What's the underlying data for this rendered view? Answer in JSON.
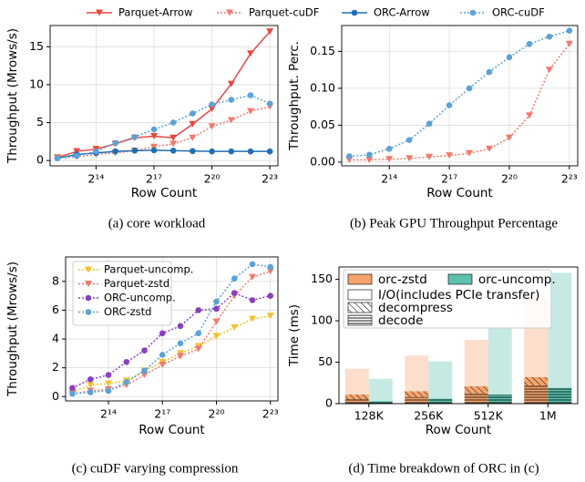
{
  "chart_data": [
    {
      "type": "line",
      "caption": "(a) core workload",
      "xlabel": "Row Count",
      "ylabel": "Throughput (Mrows/s)",
      "xscale": "log",
      "xlim": [
        3150,
        11200000
      ],
      "xticks": [
        {
          "value": 16384,
          "label": "2¹⁴"
        },
        {
          "value": 131072,
          "label": "2¹⁷"
        },
        {
          "value": 1048576,
          "label": "2²⁰"
        },
        {
          "value": 8388608,
          "label": "2²³"
        }
      ],
      "ylim": [
        -0.7,
        17.8
      ],
      "yticks": [
        0,
        5,
        10,
        15
      ],
      "grid": true,
      "legend": "top-outside",
      "x": [
        4096,
        8192,
        16384,
        32768,
        65536,
        131072,
        262144,
        524288,
        1048576,
        2097152,
        4194304,
        8388608
      ],
      "series": [
        {
          "name": "Parquet-Arrow",
          "color": "#e8473f",
          "marker": "v",
          "dash": false,
          "values": [
            0.4,
            1.2,
            1.5,
            2.2,
            3.0,
            3.2,
            3.0,
            4.8,
            6.8,
            10.1,
            14.1,
            17.0
          ]
        },
        {
          "name": "Parquet-cuDF",
          "color": "#f07a6e",
          "marker": "v",
          "dash": true,
          "values": [
            0.3,
            0.5,
            0.8,
            1.0,
            1.3,
            1.8,
            2.2,
            3.0,
            4.5,
            5.3,
            6.5,
            7.1
          ]
        },
        {
          "name": "ORC-Arrow",
          "color": "#1f6fb4",
          "marker": "o",
          "dash": false,
          "values": [
            0.3,
            0.8,
            1.0,
            1.2,
            1.3,
            1.35,
            1.3,
            1.25,
            1.2,
            1.2,
            1.2,
            1.2
          ]
        },
        {
          "name": "ORC-cuDF",
          "color": "#5ba3d6",
          "marker": "o",
          "dash": true,
          "values": [
            0.3,
            0.6,
            1.2,
            2.3,
            3.1,
            4.1,
            5.0,
            6.2,
            7.4,
            8.0,
            8.6,
            7.5
          ]
        }
      ]
    },
    {
      "type": "line",
      "caption": "(b) Peak GPU Throughput Percentage",
      "xlabel": "Row Count",
      "ylabel": "Throughput. Perc.",
      "xscale": "log",
      "xlim": [
        3150,
        11200000
      ],
      "xticks": [
        {
          "value": 16384,
          "label": "2¹⁴"
        },
        {
          "value": 131072,
          "label": "2¹⁷"
        },
        {
          "value": 1048576,
          "label": "2²⁰"
        },
        {
          "value": 8388608,
          "label": "2²³"
        }
      ],
      "ylim": [
        -0.005,
        0.185
      ],
      "yticks": [
        {
          "value": 0,
          "label": "0.00"
        },
        {
          "value": 0.05,
          "label": "0.05"
        },
        {
          "value": 0.1,
          "label": "0.10"
        },
        {
          "value": 0.15,
          "label": "0.15"
        }
      ],
      "grid": true,
      "x": [
        4096,
        8192,
        16384,
        32768,
        65536,
        131072,
        262144,
        524288,
        1048576,
        2097152,
        4194304,
        8388608
      ],
      "series": [
        {
          "color": "#f07a6e",
          "marker": "v",
          "dash": true,
          "values": [
            0.003,
            0.003,
            0.004,
            0.005,
            0.007,
            0.009,
            0.012,
            0.018,
            0.033,
            0.063,
            0.125,
            0.16
          ]
        },
        {
          "color": "#5ba3d6",
          "marker": "o",
          "dash": true,
          "values": [
            0.008,
            0.01,
            0.018,
            0.03,
            0.052,
            0.077,
            0.1,
            0.122,
            0.142,
            0.16,
            0.17,
            0.178
          ]
        }
      ]
    },
    {
      "type": "line",
      "caption": "(c) cuDF varying compression",
      "xlabel": "Row Count",
      "ylabel": "Throughput (Mrows/s)",
      "xscale": "log",
      "xlim": [
        3150,
        11200000
      ],
      "xticks": [
        {
          "value": 16384,
          "label": "2¹⁴"
        },
        {
          "value": 131072,
          "label": "2¹⁷"
        },
        {
          "value": 1048576,
          "label": "2²⁰"
        },
        {
          "value": 8388608,
          "label": "2²³"
        }
      ],
      "ylim": [
        -0.3,
        9.7
      ],
      "yticks": [
        0,
        2,
        4,
        6,
        8
      ],
      "grid": true,
      "legend": "upper left",
      "x": [
        4096,
        8192,
        16384,
        32768,
        65536,
        131072,
        262144,
        524288,
        1048576,
        2097152,
        4194304,
        8388608
      ],
      "series": [
        {
          "name": "Parquet-uncomp.",
          "color": "#f2c12e",
          "marker": "v",
          "dash": true,
          "values": [
            0.3,
            0.8,
            0.9,
            1.1,
            1.8,
            2.4,
            3.0,
            3.5,
            4.2,
            4.8,
            5.4,
            5.6
          ]
        },
        {
          "name": "Parquet-zstd",
          "color": "#f07a6e",
          "marker": "v",
          "dash": true,
          "values": [
            0.2,
            0.4,
            0.5,
            0.8,
            1.5,
            2.2,
            2.8,
            3.3,
            5.2,
            7.0,
            8.3,
            8.7
          ]
        },
        {
          "name": "ORC-uncomp.",
          "color": "#8a3fbf",
          "marker": "o",
          "dash": true,
          "values": [
            0.6,
            1.2,
            1.5,
            2.4,
            3.2,
            4.4,
            4.9,
            6.0,
            6.1,
            7.2,
            6.7,
            7.0
          ]
        },
        {
          "name": "ORC-zstd",
          "color": "#5ba3d6",
          "marker": "o",
          "dash": true,
          "values": [
            0.2,
            0.3,
            0.4,
            1.0,
            1.8,
            2.9,
            3.7,
            4.4,
            6.6,
            8.2,
            9.2,
            9.0
          ]
        }
      ]
    },
    {
      "type": "stacked_bar",
      "caption": "(d) Time breakdown of ORC in (c)",
      "xlabel": "Row Count",
      "ylabel": "Time (ms)",
      "categories": [
        "128K",
        "256K",
        "512K",
        "1M"
      ],
      "ylim": [
        0,
        165
      ],
      "yticks": [
        0,
        50,
        100,
        150
      ],
      "legend": "upper left",
      "components": [
        {
          "name": "I/O(includes PCIe transfer)",
          "hatch": "none",
          "opacity": 0.35
        },
        {
          "name": "decompress",
          "hatch": "diagonal",
          "opacity": 1
        },
        {
          "name": "decode",
          "hatch": "horizontal",
          "opacity": 1
        }
      ],
      "series": [
        {
          "name": "orc-zstd",
          "color": "#f4a46c",
          "values": [
            [
              31,
              43,
              56,
              95
            ],
            [
              6,
              7,
              9,
              10
            ],
            [
              5,
              8,
              12,
              22
            ]
          ]
        },
        {
          "name": "orc-uncomp.",
          "color": "#5cc2ae",
          "values": [
            [
              27,
              45,
              80,
              139
            ],
            [
              0,
              0,
              0,
              0
            ],
            [
              3,
              6,
              11,
              19
            ]
          ]
        }
      ]
    }
  ]
}
